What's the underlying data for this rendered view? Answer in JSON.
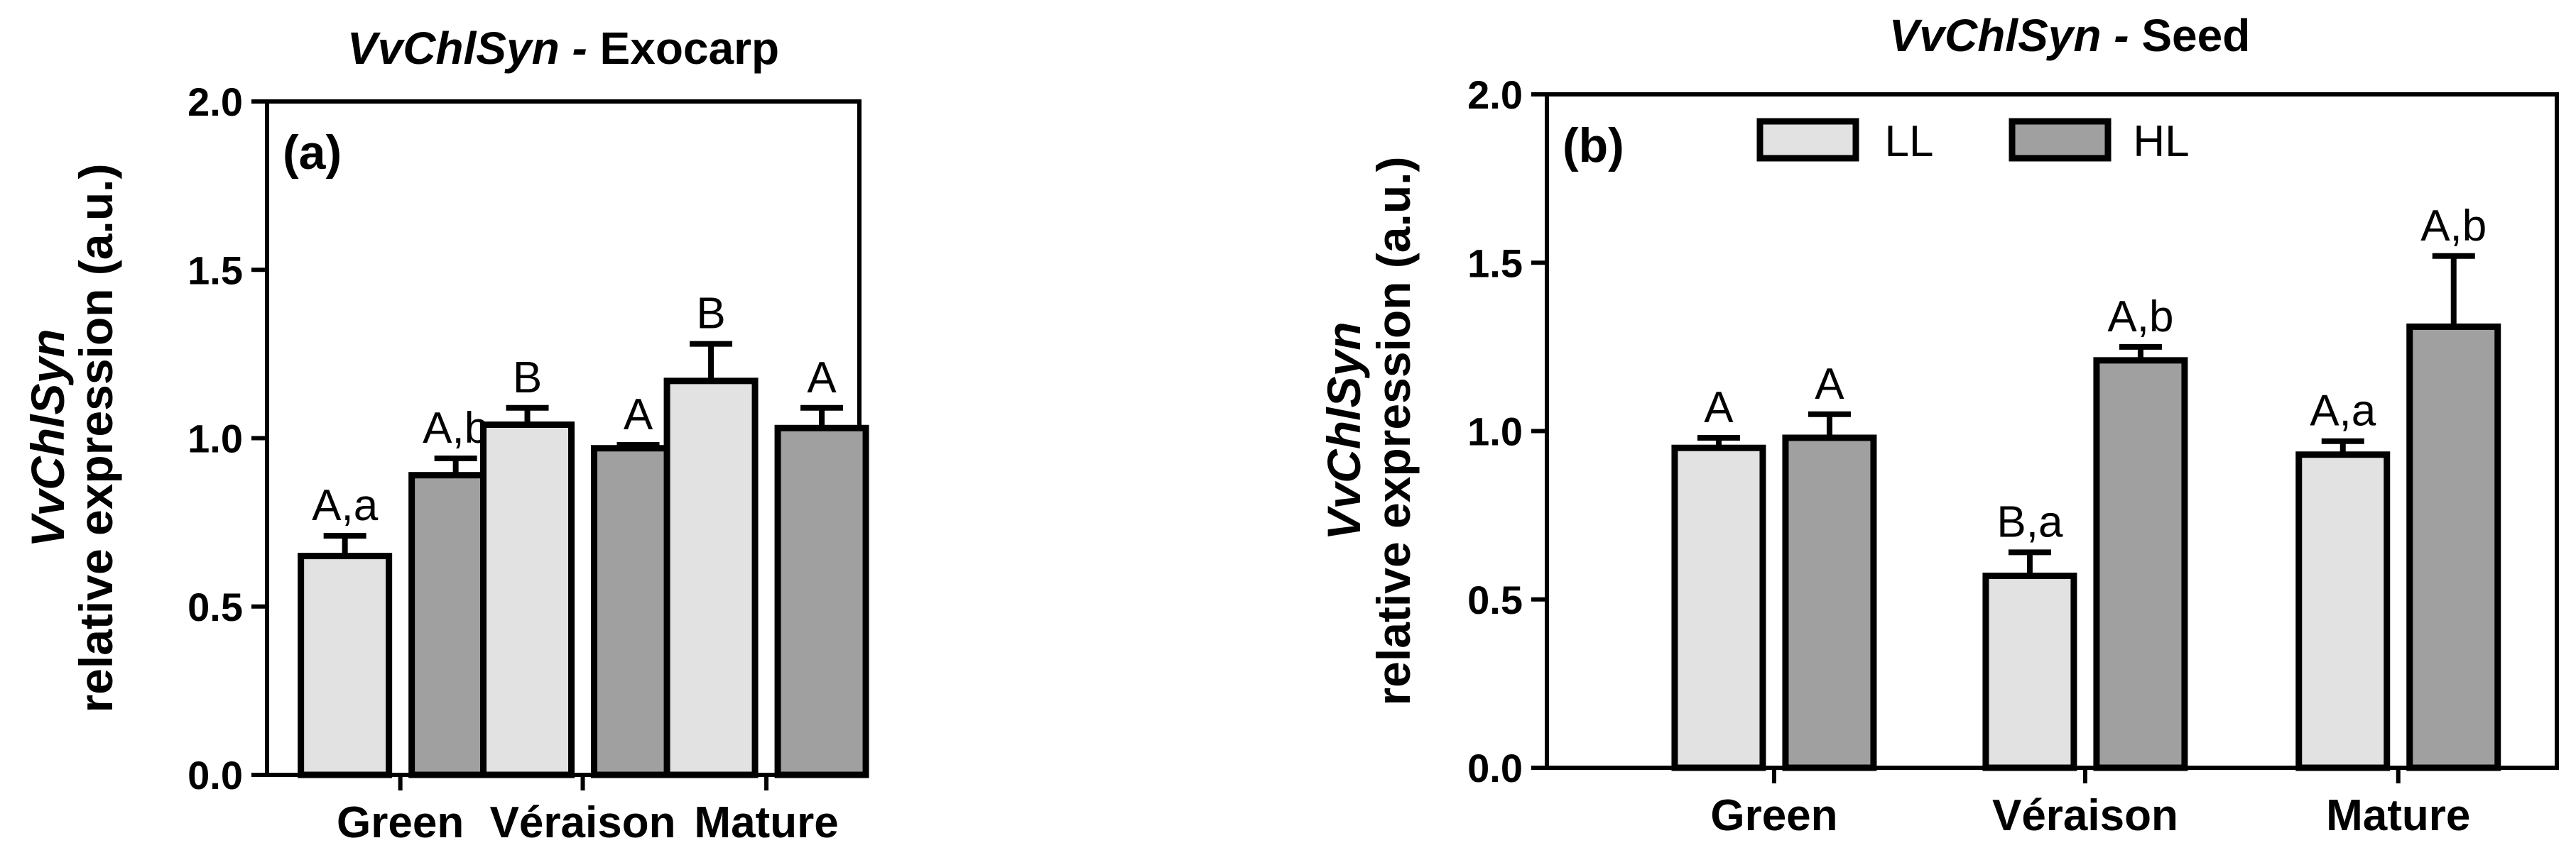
{
  "chart_data": [
    {
      "type": "bar",
      "panel_label": "(a)",
      "title_gene": "VvChlSyn -",
      "title_tissue": "Exocarp",
      "ylabel_gene": "VvChlSyn",
      "ylabel": "relative expression (a.u.)",
      "xlabel": "",
      "ylim": [
        0,
        2.0
      ],
      "yticks": [
        "0.0",
        "0.5",
        "1.0",
        "1.5",
        "2.0"
      ],
      "categories": [
        "Green",
        "Véraison",
        "Mature"
      ],
      "series": [
        {
          "name": "LL",
          "values": [
            0.65,
            1.04,
            1.17
          ],
          "errors": [
            0.06,
            0.05,
            0.11
          ],
          "labels": [
            "A,a",
            "B",
            "B"
          ]
        },
        {
          "name": "HL",
          "values": [
            0.89,
            0.97,
            1.03
          ],
          "errors": [
            0.05,
            0.01,
            0.06
          ],
          "labels": [
            "A,b",
            "A",
            "A"
          ]
        }
      ]
    },
    {
      "type": "bar",
      "panel_label": "(b)",
      "title_gene": "VvChlSyn -",
      "title_tissue": "Seed",
      "ylabel_gene": "VvChlSyn",
      "ylabel": "relative expression (a.u.)",
      "xlabel": "",
      "ylim": [
        0,
        2.0
      ],
      "yticks": [
        "0.0",
        "0.5",
        "1.0",
        "1.5",
        "2.0"
      ],
      "categories": [
        "Green",
        "Véraison",
        "Mature"
      ],
      "legend": {
        "position": "top-center"
      },
      "series": [
        {
          "name": "LL",
          "values": [
            0.95,
            0.57,
            0.93
          ],
          "errors": [
            0.03,
            0.07,
            0.04
          ],
          "labels": [
            "A",
            "B,a",
            "A,a"
          ]
        },
        {
          "name": "HL",
          "values": [
            0.98,
            1.21,
            1.31
          ],
          "errors": [
            0.07,
            0.04,
            0.21
          ],
          "labels": [
            "A",
            "A,b",
            "A,b"
          ]
        }
      ]
    }
  ],
  "colors": {
    "LL": "#e2e2e2",
    "HL": "#a0a0a0",
    "axis": "#000000"
  }
}
